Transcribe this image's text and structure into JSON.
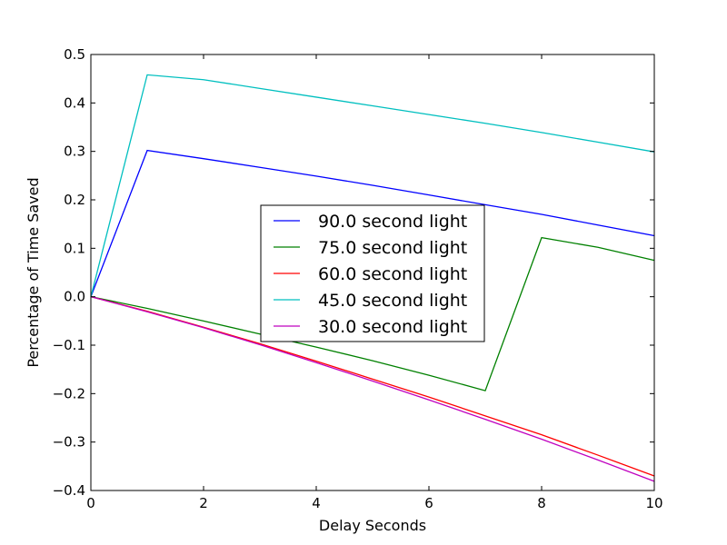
{
  "chart_data": {
    "type": "line",
    "title": "",
    "xlabel": "Delay Seconds",
    "ylabel": "Percentage of Time Saved",
    "xlim": [
      0,
      10
    ],
    "ylim": [
      -0.4,
      0.5
    ],
    "xticks": [
      0,
      2,
      4,
      6,
      8,
      10
    ],
    "xtick_labels": [
      "0",
      "2",
      "4",
      "6",
      "8",
      "10"
    ],
    "yticks": [
      -0.4,
      -0.3,
      -0.2,
      -0.1,
      0.0,
      0.1,
      0.2,
      0.3,
      0.4,
      0.5
    ],
    "ytick_labels": [
      "−0.4",
      "−0.3",
      "−0.2",
      "−0.1",
      "0.0",
      "0.1",
      "0.2",
      "0.3",
      "0.4",
      "0.5"
    ],
    "grid": false,
    "legend_position": "center",
    "x": [
      0,
      1,
      2,
      3,
      4,
      5,
      6,
      7,
      8,
      9,
      10
    ],
    "series": [
      {
        "name": "90.0 second light",
        "color": "#0000ff",
        "values": [
          0.0,
          0.302,
          0.285,
          0.267,
          0.249,
          0.23,
          0.21,
          0.19,
          0.17,
          0.148,
          0.126
        ]
      },
      {
        "name": "75.0 second light",
        "color": "#008000",
        "values": [
          0.0,
          -0.024,
          -0.05,
          -0.077,
          -0.104,
          -0.132,
          -0.162,
          -0.194,
          0.122,
          0.102,
          0.075
        ]
      },
      {
        "name": "60.0 second light",
        "color": "#ff0000",
        "values": [
          0.0,
          -0.03,
          -0.063,
          -0.097,
          -0.133,
          -0.17,
          -0.207,
          -0.246,
          -0.285,
          -0.327,
          -0.37
        ]
      },
      {
        "name": "45.0 second light",
        "color": "#00bfbf",
        "values": [
          0.0,
          0.458,
          0.448,
          0.43,
          0.412,
          0.394,
          0.376,
          0.358,
          0.339,
          0.319,
          0.299
        ]
      },
      {
        "name": "30.0 second light",
        "color": "#bf00bf",
        "values": [
          0.0,
          -0.031,
          -0.064,
          -0.099,
          -0.136,
          -0.174,
          -0.213,
          -0.253,
          -0.294,
          -0.337,
          -0.381
        ]
      }
    ]
  }
}
